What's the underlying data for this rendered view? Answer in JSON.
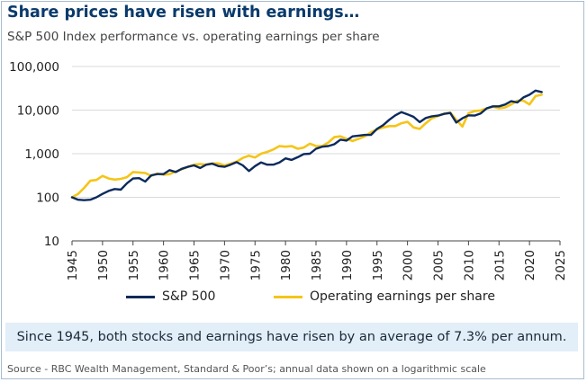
{
  "title": "Share prices have risen with earnings…",
  "subtitle": "S&P 500 Index performance vs. operating earnings per share",
  "callout": "Since 1945, both stocks and earnings have risen by an average of 7.3% per annum.",
  "source": "Source - RBC Wealth Management, Standard & Poor’s; annual data shown on a logarithmic scale",
  "colors": {
    "sp500": "#0c2a5c",
    "earnings": "#f5c518",
    "axis": "#444444"
  },
  "chart_data": {
    "type": "line",
    "title": "Share prices have risen with earnings…",
    "yscale": "log",
    "ylim": [
      10,
      100000
    ],
    "xlim": [
      1945,
      2025
    ],
    "x_ticks": [
      1945,
      1950,
      1955,
      1960,
      1965,
      1970,
      1975,
      1980,
      1985,
      1990,
      1995,
      2000,
      2005,
      2010,
      2015,
      2020,
      2025
    ],
    "y_ticks": [
      10,
      100,
      1000,
      10000,
      100000
    ],
    "y_tick_labels": [
      "10",
      "100",
      "1,000",
      "10,000",
      "100,000"
    ],
    "series": [
      {
        "name": "S&P 500",
        "color": "#0c2a5c",
        "points": [
          [
            1945,
            100
          ],
          [
            1946,
            88
          ],
          [
            1947,
            86
          ],
          [
            1948,
            88
          ],
          [
            1949,
            100
          ],
          [
            1950,
            120
          ],
          [
            1951,
            140
          ],
          [
            1952,
            155
          ],
          [
            1953,
            150
          ],
          [
            1954,
            210
          ],
          [
            1955,
            270
          ],
          [
            1956,
            275
          ],
          [
            1957,
            230
          ],
          [
            1958,
            320
          ],
          [
            1959,
            340
          ],
          [
            1960,
            340
          ],
          [
            1961,
            420
          ],
          [
            1962,
            380
          ],
          [
            1963,
            450
          ],
          [
            1964,
            500
          ],
          [
            1965,
            540
          ],
          [
            1966,
            470
          ],
          [
            1967,
            560
          ],
          [
            1968,
            590
          ],
          [
            1969,
            520
          ],
          [
            1970,
            500
          ],
          [
            1971,
            560
          ],
          [
            1972,
            640
          ],
          [
            1973,
            540
          ],
          [
            1974,
            400
          ],
          [
            1975,
            520
          ],
          [
            1976,
            630
          ],
          [
            1977,
            560
          ],
          [
            1978,
            560
          ],
          [
            1979,
            630
          ],
          [
            1980,
            780
          ],
          [
            1981,
            720
          ],
          [
            1982,
            830
          ],
          [
            1983,
            980
          ],
          [
            1984,
            1000
          ],
          [
            1985,
            1300
          ],
          [
            1986,
            1450
          ],
          [
            1987,
            1500
          ],
          [
            1988,
            1650
          ],
          [
            1989,
            2100
          ],
          [
            1990,
            2000
          ],
          [
            1991,
            2500
          ],
          [
            1992,
            2600
          ],
          [
            1993,
            2700
          ],
          [
            1994,
            2700
          ],
          [
            1995,
            3700
          ],
          [
            1996,
            4500
          ],
          [
            1997,
            6000
          ],
          [
            1998,
            7600
          ],
          [
            1999,
            9000
          ],
          [
            2000,
            8000
          ],
          [
            2001,
            7000
          ],
          [
            2002,
            5300
          ],
          [
            2003,
            6600
          ],
          [
            2004,
            7200
          ],
          [
            2005,
            7500
          ],
          [
            2006,
            8200
          ],
          [
            2007,
            8600
          ],
          [
            2008,
            5200
          ],
          [
            2009,
            6500
          ],
          [
            2010,
            7600
          ],
          [
            2011,
            7500
          ],
          [
            2012,
            8400
          ],
          [
            2013,
            11000
          ],
          [
            2014,
            12200
          ],
          [
            2015,
            12200
          ],
          [
            2016,
            13400
          ],
          [
            2017,
            16000
          ],
          [
            2018,
            15000
          ],
          [
            2019,
            19500
          ],
          [
            2020,
            22500
          ],
          [
            2021,
            28000
          ],
          [
            2022,
            26000
          ]
        ]
      },
      {
        "name": "Operating earnings per share",
        "color": "#f5c518",
        "points": [
          [
            1945,
            100
          ],
          [
            1946,
            120
          ],
          [
            1947,
            165
          ],
          [
            1948,
            240
          ],
          [
            1949,
            250
          ],
          [
            1950,
            310
          ],
          [
            1951,
            270
          ],
          [
            1952,
            255
          ],
          [
            1953,
            265
          ],
          [
            1954,
            290
          ],
          [
            1955,
            380
          ],
          [
            1956,
            370
          ],
          [
            1957,
            360
          ],
          [
            1958,
            310
          ],
          [
            1959,
            350
          ],
          [
            1960,
            330
          ],
          [
            1961,
            340
          ],
          [
            1962,
            390
          ],
          [
            1963,
            440
          ],
          [
            1964,
            500
          ],
          [
            1965,
            560
          ],
          [
            1966,
            580
          ],
          [
            1967,
            560
          ],
          [
            1968,
            600
          ],
          [
            1969,
            600
          ],
          [
            1970,
            540
          ],
          [
            1971,
            590
          ],
          [
            1972,
            660
          ],
          [
            1973,
            800
          ],
          [
            1974,
            900
          ],
          [
            1975,
            820
          ],
          [
            1976,
            1000
          ],
          [
            1977,
            1100
          ],
          [
            1978,
            1250
          ],
          [
            1979,
            1500
          ],
          [
            1980,
            1450
          ],
          [
            1981,
            1500
          ],
          [
            1982,
            1300
          ],
          [
            1983,
            1380
          ],
          [
            1984,
            1700
          ],
          [
            1985,
            1500
          ],
          [
            1986,
            1500
          ],
          [
            1987,
            1800
          ],
          [
            1988,
            2400
          ],
          [
            1989,
            2500
          ],
          [
            1990,
            2200
          ],
          [
            1991,
            1950
          ],
          [
            1992,
            2200
          ],
          [
            1993,
            2500
          ],
          [
            1994,
            3100
          ],
          [
            1995,
            3600
          ],
          [
            1996,
            4000
          ],
          [
            1997,
            4300
          ],
          [
            1998,
            4300
          ],
          [
            1999,
            5000
          ],
          [
            2000,
            5400
          ],
          [
            2001,
            4000
          ],
          [
            2002,
            3700
          ],
          [
            2003,
            5000
          ],
          [
            2004,
            6500
          ],
          [
            2005,
            7300
          ],
          [
            2006,
            8300
          ],
          [
            2007,
            8800
          ],
          [
            2008,
            6000
          ],
          [
            2009,
            4200
          ],
          [
            2010,
            8500
          ],
          [
            2011,
            9500
          ],
          [
            2012,
            9800
          ],
          [
            2013,
            11000
          ],
          [
            2014,
            12000
          ],
          [
            2015,
            11000
          ],
          [
            2016,
            11500
          ],
          [
            2017,
            13500
          ],
          [
            2018,
            16500
          ],
          [
            2019,
            16500
          ],
          [
            2020,
            13500
          ],
          [
            2021,
            21000
          ],
          [
            2022,
            22500
          ]
        ]
      }
    ]
  }
}
